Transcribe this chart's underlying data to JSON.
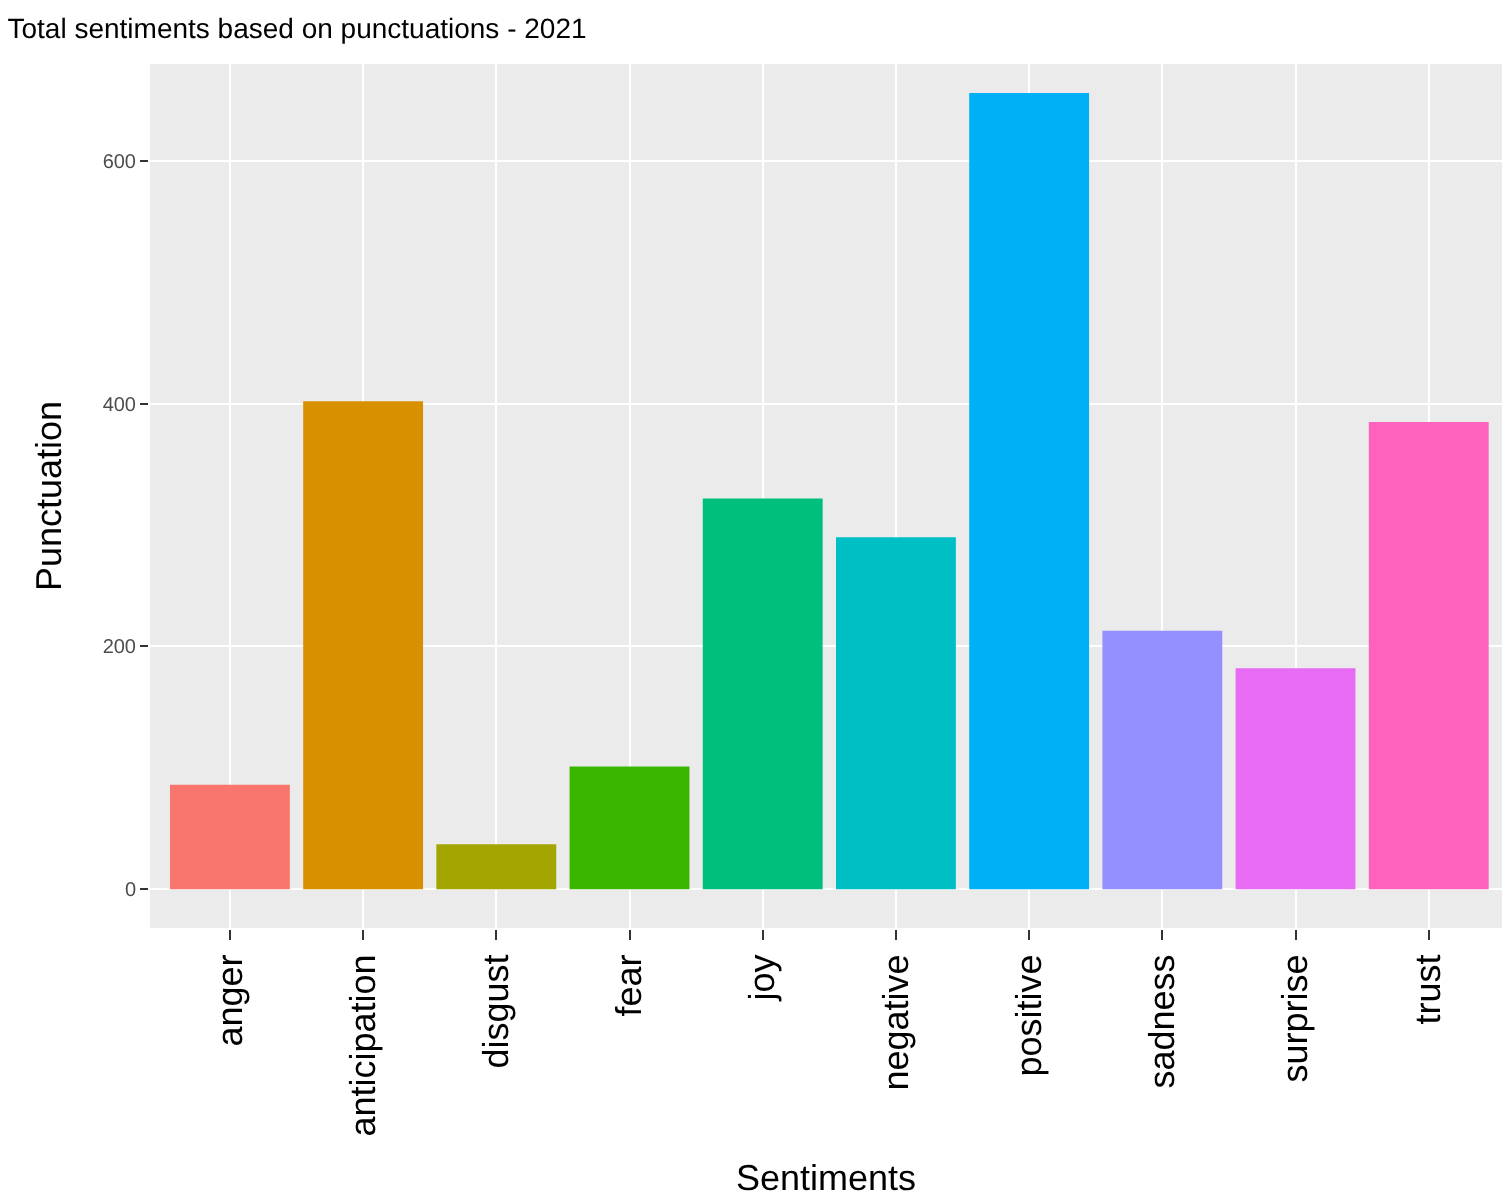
{
  "chart_data": {
    "type": "bar",
    "title": "Total sentiments based on punctuations - 2021",
    "xlabel": "Sentiments",
    "ylabel": "Punctuation",
    "categories": [
      "anger",
      "anticipation",
      "disgust",
      "fear",
      "joy",
      "negative",
      "positive",
      "sadness",
      "surprise",
      "trust"
    ],
    "values": [
      86,
      402,
      37,
      101,
      322,
      290,
      656,
      213,
      182,
      385
    ],
    "colors": [
      "#f8766d",
      "#d89000",
      "#a3a500",
      "#39b600",
      "#00bf7d",
      "#00bfc4",
      "#00b0f6",
      "#9590ff",
      "#e76bf3",
      "#ff62bc"
    ],
    "ylim": [
      -32,
      680
    ],
    "yticks": [
      0,
      200,
      400,
      600
    ],
    "grid": true,
    "legend": false
  }
}
